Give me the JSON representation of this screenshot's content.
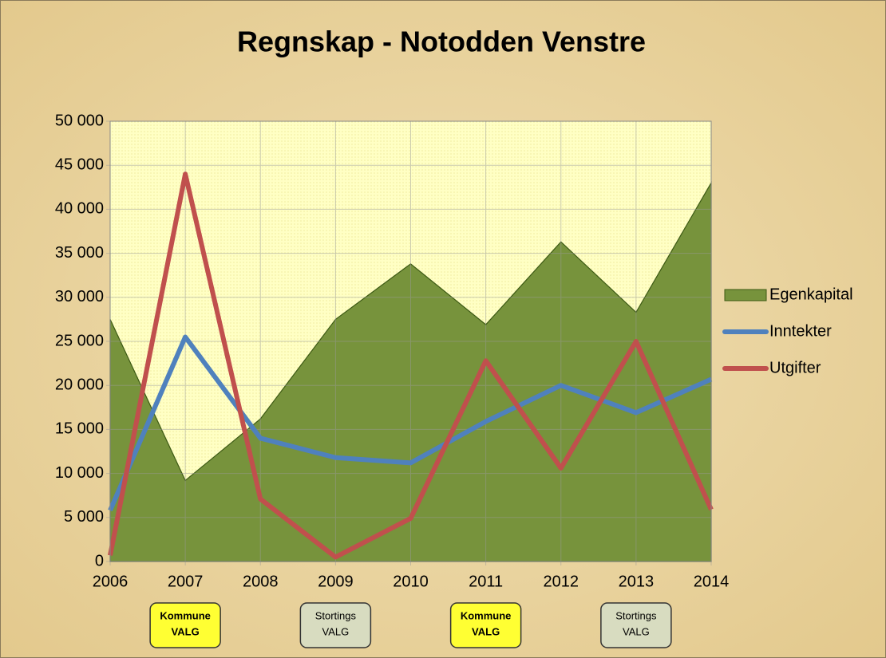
{
  "chart_data": {
    "type": "line",
    "title": "Regnskap - Notodden Venstre",
    "categories": [
      "2006",
      "2007",
      "2008",
      "2009",
      "2010",
      "2011",
      "2012",
      "2013",
      "2014"
    ],
    "series": [
      {
        "name": "Egenkapital",
        "kind": "area",
        "color": "#77933c",
        "values": [
          27500,
          9200,
          16200,
          27500,
          33800,
          26900,
          36300,
          28300,
          43000
        ]
      },
      {
        "name": "Inntekter",
        "kind": "line",
        "color": "#4f81bd",
        "values": [
          5800,
          25500,
          14000,
          11800,
          11200,
          15900,
          20000,
          16900,
          20700
        ]
      },
      {
        "name": "Utgifter",
        "kind": "line",
        "color": "#c0504d",
        "values": [
          700,
          44000,
          7100,
          500,
          4900,
          22800,
          10600,
          25000,
          5900
        ]
      }
    ],
    "ylim": [
      0,
      50000
    ],
    "yticks": [
      0,
      {
        "value": 5000,
        "label": "5 000"
      },
      {
        "value": 10000,
        "label": "10 000"
      },
      {
        "value": 15000,
        "label": "15 000"
      },
      {
        "value": 20000,
        "label": "20 000"
      },
      {
        "value": 25000,
        "label": "25 000"
      },
      {
        "value": 30000,
        "label": "30 000"
      },
      {
        "value": 35000,
        "label": "35 000"
      },
      {
        "value": 40000,
        "label": "40 000"
      },
      {
        "value": 45000,
        "label": "45 000"
      },
      {
        "value": 50000,
        "label": "50 000"
      }
    ],
    "grid": true,
    "legend": "right",
    "annotations": [
      {
        "category": "2007",
        "lines": [
          "Kommune",
          "VALG"
        ],
        "color": "#ffff33",
        "bold": true
      },
      {
        "category": "2009",
        "lines": [
          "Stortings",
          "VALG"
        ],
        "color": "#d8dcc0",
        "bold": false
      },
      {
        "category": "2011",
        "lines": [
          "Kommune",
          "VALG"
        ],
        "color": "#ffff33",
        "bold": true
      },
      {
        "category": "2013",
        "lines": [
          "Stortings",
          "VALG"
        ],
        "color": "#d8dcc0",
        "bold": false
      }
    ]
  }
}
